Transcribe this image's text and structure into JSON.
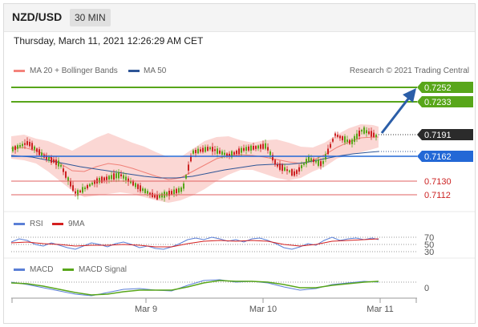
{
  "header": {
    "symbol": "NZD/USD",
    "timeframe": "30 MIN",
    "datetime": "Thursday, March 11, 2021 12:26:29 AM CET"
  },
  "main_legend": {
    "items": [
      {
        "label": "MA 20 + Bollinger Bands",
        "color": "#f4837b"
      },
      {
        "label": "MA 50",
        "color": "#2e5596"
      }
    ],
    "credit": "Research © 2021 Trading Central"
  },
  "price_labels": [
    {
      "value": "0.7252",
      "style": "box",
      "color": "#58a61a",
      "text_color": "#ffffff"
    },
    {
      "value": "0.7233",
      "style": "box",
      "color": "#58a61a",
      "text_color": "#ffffff"
    },
    {
      "value": "0.7191",
      "style": "box",
      "color": "#2b2b2b",
      "text_color": "#ffffff"
    },
    {
      "value": "0.7162",
      "style": "box",
      "color": "#2368d6",
      "text_color": "#ffffff"
    },
    {
      "value": "0.7130",
      "style": "text",
      "color": "#cc2222"
    },
    {
      "value": "0.7112",
      "style": "text",
      "color": "#cc2222"
    }
  ],
  "rsi_panel": {
    "legend": [
      {
        "label": "RSI",
        "color": "#5b7fd6"
      },
      {
        "label": "9MA",
        "color": "#d42020"
      }
    ],
    "levels": [
      "70",
      "50",
      "30"
    ]
  },
  "macd_panel": {
    "legend": [
      {
        "label": "MACD",
        "color": "#5b7fd6"
      },
      {
        "label": "MACD Signal",
        "color": "#58a61a"
      }
    ],
    "level": "0"
  },
  "x_axis": {
    "ticks": [
      "Mar 9",
      "Mar 10",
      "Mar 11"
    ]
  },
  "colors": {
    "up_candle": "#58a61a",
    "down_candle": "#cc2222",
    "resistance": "#58a61a",
    "support": "#2368d6",
    "pivot_levels": "#e06060",
    "bollinger_fill": "#f9c9c5",
    "arrow": "#2b5ea8"
  }
}
